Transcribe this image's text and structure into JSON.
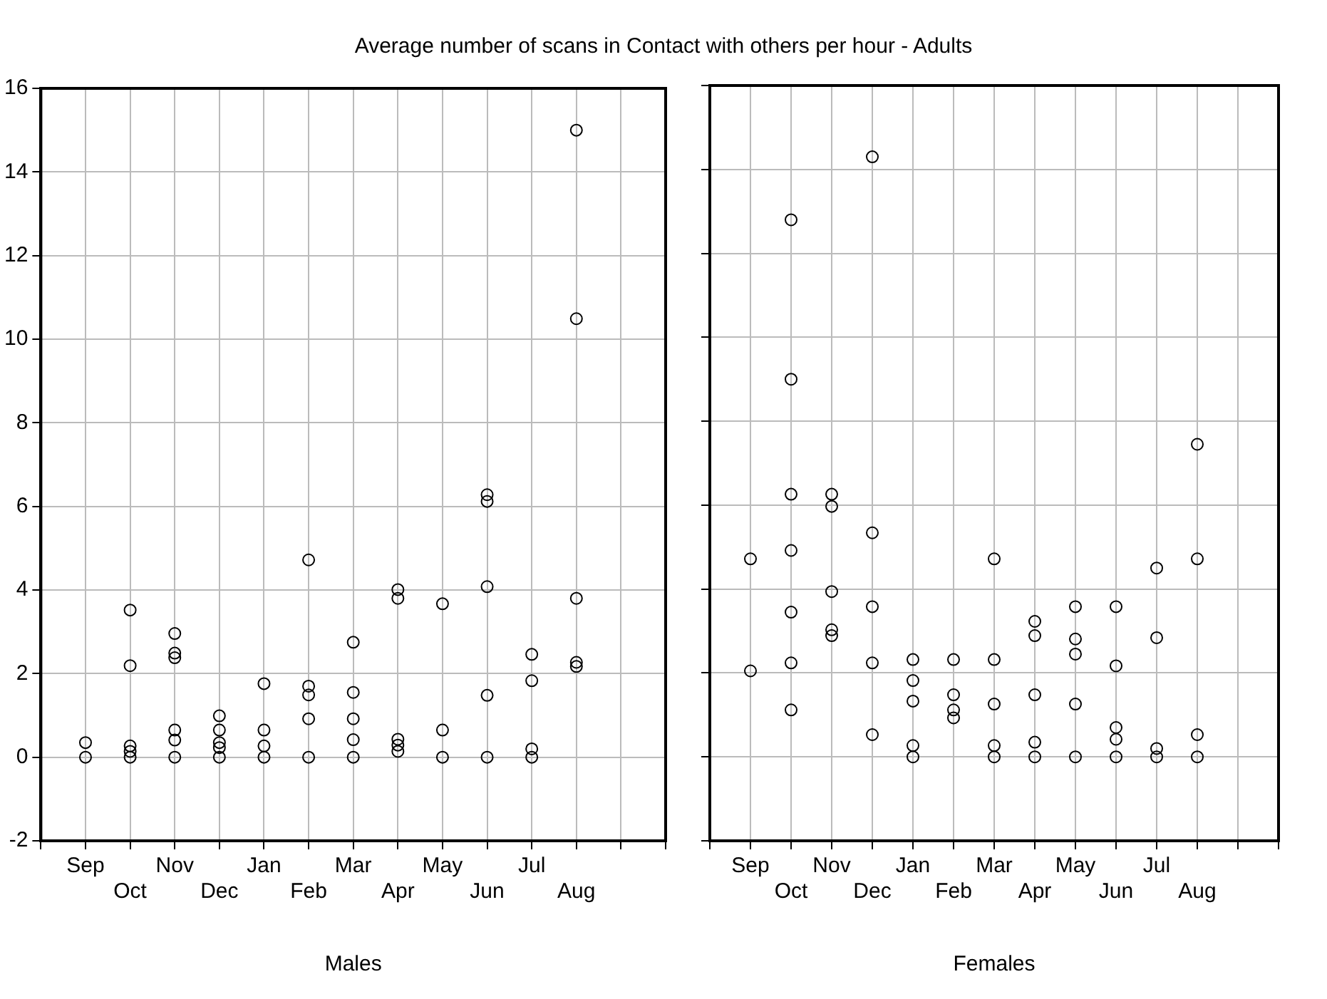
{
  "chart_data": [
    {
      "type": "scatter",
      "title": "Average number of scans in Contact with others per hour - Adults",
      "xlabel": "Males",
      "marker": "circle",
      "grid": true,
      "categories": [
        null,
        "Sep",
        "Oct",
        "Nov",
        "Dec",
        "Jan",
        "Feb",
        "Mar",
        "Apr",
        "May",
        "Jun",
        "Jul",
        "Aug",
        null,
        null
      ],
      "series": [
        {
          "color": "#000000",
          "values": [
            null,
            0,
            3.52,
            2.96,
            0.99,
            1.76,
            4.72,
            2.75,
            4.01,
            3.67,
            6.28,
            2.46,
            15,
            null,
            null
          ]
        },
        {
          "color": "#000000",
          "values": [
            null,
            0.35,
            2.19,
            2.49,
            0.65,
            0.65,
            1.7,
            1.55,
            3.8,
            0.65,
            6.12,
            1.83,
            10.49,
            null,
            null
          ]
        },
        {
          "color": "#000000",
          "values": [
            null,
            null,
            0.27,
            2.38,
            0.35,
            0.27,
            1.49,
            0.92,
            0.43,
            0,
            4.08,
            0.2,
            3.8,
            null,
            null
          ]
        },
        {
          "color": "#000000",
          "values": [
            null,
            null,
            0.14,
            0.65,
            0.23,
            0,
            0.92,
            0.42,
            0.29,
            null,
            1.48,
            0,
            2.27,
            null,
            null
          ]
        },
        {
          "color": "#000000",
          "values": [
            null,
            null,
            0,
            0.41,
            0,
            null,
            0,
            0,
            0.14,
            null,
            0,
            null,
            2.17,
            null,
            null
          ]
        },
        {
          "color": "#000000",
          "values": [
            null,
            null,
            null,
            0,
            null,
            null,
            null,
            null,
            null,
            null,
            null,
            null,
            null,
            null,
            null
          ]
        }
      ],
      "ylim": [
        -2,
        16
      ],
      "yticks": [
        -2,
        0,
        2,
        4,
        6,
        8,
        10,
        12,
        14,
        16
      ]
    },
    {
      "type": "scatter",
      "xlabel": "Females",
      "marker": "circle",
      "grid": true,
      "tick_labels": "x",
      "categories": [
        null,
        "Sep",
        "Oct",
        "Nov",
        "Dec",
        "Jan",
        "Feb",
        "Mar",
        "Apr",
        "May",
        "Jun",
        "Jul",
        "Aug",
        null,
        null
      ],
      "series": [
        {
          "color": "#000000",
          "values": [
            null,
            4.72,
            12.8,
            6.26,
            14.3,
            2.32,
            2.32,
            4.72,
            3.23,
            3.58,
            3.58,
            4.5,
            7.45,
            null,
            null
          ]
        },
        {
          "color": "#000000",
          "values": [
            null,
            2.05,
            9,
            5.97,
            5.34,
            1.82,
            1.48,
            2.32,
            2.89,
            2.81,
            2.17,
            2.84,
            4.72,
            null,
            null
          ]
        },
        {
          "color": "#000000",
          "values": [
            null,
            null,
            6.26,
            3.94,
            3.58,
            1.33,
            1.12,
            1.26,
            1.48,
            2.45,
            0.7,
            0.2,
            0.53,
            null,
            null
          ]
        },
        {
          "color": "#000000",
          "values": [
            null,
            null,
            4.92,
            3.03,
            2.24,
            0.27,
            0.93,
            0.27,
            0.35,
            1.26,
            0.42,
            0,
            0,
            null,
            null
          ]
        },
        {
          "color": "#000000",
          "values": [
            null,
            null,
            3.45,
            2.89,
            0.53,
            0,
            null,
            0,
            0,
            0,
            0,
            null,
            null,
            null,
            null
          ]
        },
        {
          "color": "#000000",
          "values": [
            null,
            null,
            2.24,
            null,
            null,
            null,
            null,
            null,
            null,
            null,
            null,
            null,
            null,
            null,
            null
          ]
        },
        {
          "color": "#000000",
          "values": [
            null,
            null,
            1.12,
            null,
            null,
            null,
            null,
            null,
            null,
            null,
            null,
            null,
            null,
            null,
            null
          ]
        }
      ],
      "ylim": [
        -2,
        16
      ],
      "yticks": [
        -2,
        0,
        2,
        4,
        6,
        8,
        10,
        12,
        14,
        16
      ]
    }
  ]
}
